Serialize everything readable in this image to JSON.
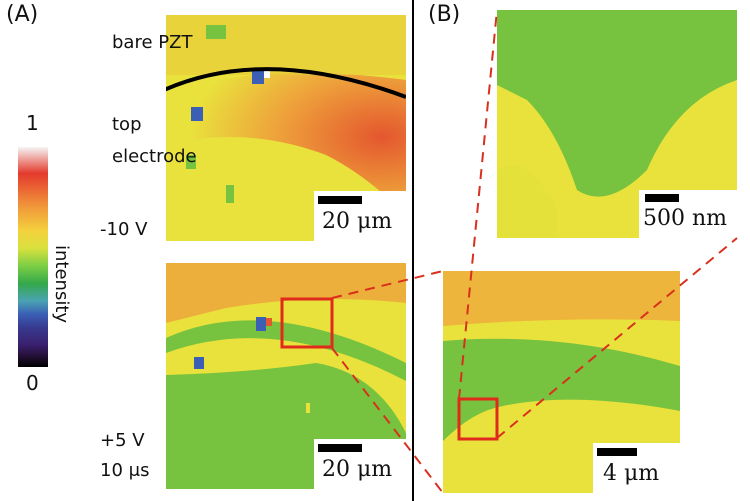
{
  "panels": {
    "a_label": "(A)",
    "b_label": "(B)"
  },
  "colorbar": {
    "max": "1",
    "min": "0",
    "label": "intensity",
    "colors": [
      "#f5f5f5",
      "#e43a2d",
      "#f0913a",
      "#f4d13d",
      "#d9e13e",
      "#7ccf45",
      "#34a84a",
      "#4aa3b3",
      "#3a5fb5",
      "#373a8f",
      "#3a1f6e",
      "#241035",
      "#000000"
    ]
  },
  "top_map": {
    "annotation_bare": "bare PZT",
    "annotation_top_line1": "top",
    "annotation_top_line2": "electrode",
    "voltage": "-10 V",
    "scalebar": "20 μm"
  },
  "bottom_map": {
    "voltage": "+5 V",
    "duration": "10 μs",
    "scalebar": "20 μm"
  },
  "zoom_top": {
    "scalebar": "500 nm"
  },
  "zoom_bottom": {
    "scalebar": "4 μm"
  },
  "colors": {
    "yellow": "#e9e23c",
    "green": "#77c23e",
    "orange": "#eea23b",
    "red": "#e4572e",
    "zoom_box": "#e02a1b",
    "dash": "#d9301e"
  }
}
